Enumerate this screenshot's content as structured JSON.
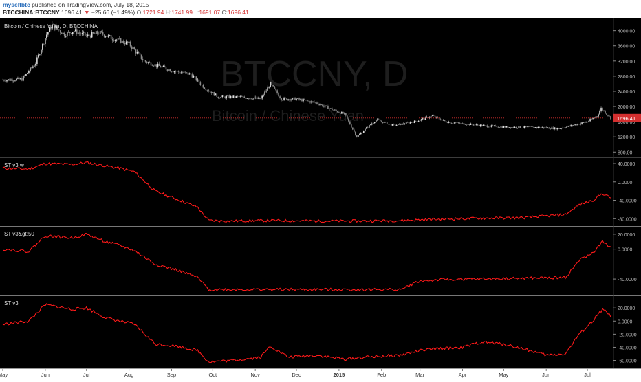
{
  "header": {
    "author": "myselfbtc",
    "published": "published on TradingView.com, July 18, 2015",
    "symbol": "BTCCHINA:BTCCNY",
    "last": "1696.41",
    "arrow": "▼",
    "change": "−25.66 (−1.49%)",
    "o_label": "O:",
    "o_val": "1721.94",
    "h_label": "H:",
    "h_val": "1741.99",
    "l_label": "L:",
    "l_val": "1691.07",
    "c_label": "C:",
    "c_val": "1696.41"
  },
  "watermark": {
    "line1": "BTCCNY, D",
    "line2": "Bitcoin / Chinese Yuan"
  },
  "colors": {
    "background": "#000000",
    "indicator": "#ff1a1a",
    "price_line": "#d32f2f",
    "candle_up": "#e0e0e0",
    "candle_down": "#8c8c8c",
    "axis_text": "#bbbbbb"
  },
  "chart_data": [
    {
      "type": "candlestick",
      "title": "Bitcoin / Chinese Yuan, D, BTCCHINA",
      "yticks": [
        "4000.00",
        "3600.00",
        "3200.00",
        "2800.00",
        "2400.00",
        "2000.00",
        "1600.00",
        "1200.00",
        "800.00"
      ],
      "ytick_values": [
        4000,
        3600,
        3200,
        2800,
        2400,
        2000,
        1600,
        1200,
        800
      ],
      "ylim": [
        660,
        4320
      ],
      "last_price_label": "1696.41",
      "last_price": 1696.41,
      "x_range": [
        "2014-05-01",
        "2015-07-18"
      ],
      "close_path": [
        [
          "2014-05-01",
          2700
        ],
        [
          "2014-05-15",
          2720
        ],
        [
          "2014-05-25",
          3150
        ],
        [
          "2014-06-02",
          3900
        ],
        [
          "2014-06-06",
          4150
        ],
        [
          "2014-06-15",
          3900
        ],
        [
          "2014-06-22",
          4000
        ],
        [
          "2014-07-01",
          3850
        ],
        [
          "2014-07-10",
          3950
        ],
        [
          "2014-07-20",
          3800
        ],
        [
          "2014-08-01",
          3650
        ],
        [
          "2014-08-12",
          3200
        ],
        [
          "2014-08-20",
          3100
        ],
        [
          "2014-09-01",
          2950
        ],
        [
          "2014-09-15",
          2850
        ],
        [
          "2014-09-25",
          2500
        ],
        [
          "2014-10-05",
          2250
        ],
        [
          "2014-10-20",
          2250
        ],
        [
          "2014-11-05",
          2200
        ],
        [
          "2014-11-12",
          2600
        ],
        [
          "2014-11-20",
          2200
        ],
        [
          "2014-12-01",
          2200
        ],
        [
          "2014-12-15",
          2100
        ],
        [
          "2014-12-25",
          1950
        ],
        [
          "2015-01-05",
          1800
        ],
        [
          "2015-01-14",
          1200
        ],
        [
          "2015-01-20",
          1400
        ],
        [
          "2015-01-28",
          1650
        ],
        [
          "2015-02-10",
          1500
        ],
        [
          "2015-02-25",
          1600
        ],
        [
          "2015-03-10",
          1750
        ],
        [
          "2015-03-20",
          1600
        ],
        [
          "2015-04-01",
          1550
        ],
        [
          "2015-04-20",
          1480
        ],
        [
          "2015-05-10",
          1450
        ],
        [
          "2015-05-25",
          1450
        ],
        [
          "2015-06-10",
          1420
        ],
        [
          "2015-06-20",
          1500
        ],
        [
          "2015-07-01",
          1600
        ],
        [
          "2015-07-08",
          1750
        ],
        [
          "2015-07-11",
          1950
        ],
        [
          "2015-07-18",
          1696
        ]
      ]
    },
    {
      "type": "line",
      "title": "ST v3 w",
      "yticks": [
        "40.0000",
        "0.0000",
        "-40.0000",
        "-80.0000"
      ],
      "ytick_values": [
        40,
        0,
        -40,
        -80
      ],
      "ylim": [
        -96,
        52
      ],
      "points": [
        [
          "2014-05-01",
          30
        ],
        [
          "2014-05-20",
          28
        ],
        [
          "2014-06-01",
          40
        ],
        [
          "2014-06-20",
          38
        ],
        [
          "2014-07-01",
          42
        ],
        [
          "2014-07-15",
          35
        ],
        [
          "2014-07-25",
          30
        ],
        [
          "2014-08-05",
          22
        ],
        [
          "2014-08-20",
          -20
        ],
        [
          "2014-09-05",
          -38
        ],
        [
          "2014-09-20",
          -55
        ],
        [
          "2014-09-28",
          -84
        ],
        [
          "2014-10-15",
          -85
        ],
        [
          "2014-11-15",
          -84
        ],
        [
          "2014-12-15",
          -85
        ],
        [
          "2015-01-15",
          -85
        ],
        [
          "2015-02-15",
          -84
        ],
        [
          "2015-03-15",
          -81
        ],
        [
          "2015-04-15",
          -79
        ],
        [
          "2015-05-15",
          -78
        ],
        [
          "2015-06-15",
          -71
        ],
        [
          "2015-06-25",
          -50
        ],
        [
          "2015-07-05",
          -40
        ],
        [
          "2015-07-12",
          -25
        ],
        [
          "2015-07-18",
          -35
        ]
      ]
    },
    {
      "type": "line",
      "title": "ST v3&gt;50",
      "yticks": [
        "20.0000",
        "0.0000",
        "-40.0000"
      ],
      "ytick_values": [
        20,
        0,
        -40
      ],
      "ylim": [
        -62,
        30
      ],
      "points": [
        [
          "2014-05-01",
          0
        ],
        [
          "2014-05-20",
          -3
        ],
        [
          "2014-06-01",
          18
        ],
        [
          "2014-06-20",
          15
        ],
        [
          "2014-07-01",
          20
        ],
        [
          "2014-07-15",
          10
        ],
        [
          "2014-07-25",
          5
        ],
        [
          "2014-08-05",
          -2
        ],
        [
          "2014-08-20",
          -20
        ],
        [
          "2014-09-05",
          -28
        ],
        [
          "2014-09-20",
          -38
        ],
        [
          "2014-09-28",
          -54
        ],
        [
          "2014-10-15",
          -54
        ],
        [
          "2014-11-15",
          -54
        ],
        [
          "2014-12-15",
          -54
        ],
        [
          "2015-01-15",
          -54
        ],
        [
          "2015-02-15",
          -54
        ],
        [
          "2015-02-28",
          -43
        ],
        [
          "2015-03-15",
          -41
        ],
        [
          "2015-04-15",
          -40
        ],
        [
          "2015-05-15",
          -39
        ],
        [
          "2015-06-15",
          -38
        ],
        [
          "2015-06-25",
          -15
        ],
        [
          "2015-07-05",
          -5
        ],
        [
          "2015-07-12",
          10
        ],
        [
          "2015-07-18",
          2
        ]
      ]
    },
    {
      "type": "line",
      "title": "ST v3",
      "yticks": [
        "20.0000",
        "0.0000",
        "-20.0000",
        "-40.0000",
        "-60.0000"
      ],
      "ytick_values": [
        20,
        0,
        -20,
        -40,
        -60
      ],
      "ylim": [
        -72,
        38
      ],
      "points": [
        [
          "2014-05-01",
          -5
        ],
        [
          "2014-05-20",
          0
        ],
        [
          "2014-06-01",
          25
        ],
        [
          "2014-06-20",
          18
        ],
        [
          "2014-07-01",
          20
        ],
        [
          "2014-07-15",
          5
        ],
        [
          "2014-07-25",
          0
        ],
        [
          "2014-08-05",
          -5
        ],
        [
          "2014-08-20",
          -35
        ],
        [
          "2014-09-05",
          -38
        ],
        [
          "2014-09-20",
          -45
        ],
        [
          "2014-09-28",
          -62
        ],
        [
          "2014-10-15",
          -60
        ],
        [
          "2014-11-05",
          -55
        ],
        [
          "2014-11-12",
          -38
        ],
        [
          "2014-11-25",
          -55
        ],
        [
          "2014-12-15",
          -52
        ],
        [
          "2015-01-05",
          -58
        ],
        [
          "2015-01-20",
          -55
        ],
        [
          "2015-02-15",
          -52
        ],
        [
          "2015-03-01",
          -45
        ],
        [
          "2015-03-15",
          -42
        ],
        [
          "2015-04-01",
          -40
        ],
        [
          "2015-04-15",
          -32
        ],
        [
          "2015-05-01",
          -35
        ],
        [
          "2015-05-15",
          -42
        ],
        [
          "2015-06-01",
          -52
        ],
        [
          "2015-06-15",
          -50
        ],
        [
          "2015-06-25",
          -20
        ],
        [
          "2015-07-05",
          0
        ],
        [
          "2015-07-12",
          18
        ],
        [
          "2015-07-18",
          8
        ]
      ]
    }
  ],
  "x_axis": {
    "labels": [
      {
        "text": "May",
        "date": "2014-05-01",
        "bold": false
      },
      {
        "text": "Jun",
        "date": "2014-06-01",
        "bold": false
      },
      {
        "text": "Jul",
        "date": "2014-07-01",
        "bold": false
      },
      {
        "text": "Aug",
        "date": "2014-08-01",
        "bold": false
      },
      {
        "text": "Sep",
        "date": "2014-09-01",
        "bold": false
      },
      {
        "text": "Oct",
        "date": "2014-10-01",
        "bold": false
      },
      {
        "text": "Nov",
        "date": "2014-11-01",
        "bold": false
      },
      {
        "text": "Dec",
        "date": "2014-12-01",
        "bold": false
      },
      {
        "text": "2015",
        "date": "2015-01-01",
        "bold": true
      },
      {
        "text": "Feb",
        "date": "2015-02-01",
        "bold": false
      },
      {
        "text": "Mar",
        "date": "2015-03-01",
        "bold": false
      },
      {
        "text": "Apr",
        "date": "2015-04-01",
        "bold": false
      },
      {
        "text": "May",
        "date": "2015-05-01",
        "bold": false
      },
      {
        "text": "Jun",
        "date": "2015-06-01",
        "bold": false
      },
      {
        "text": "Jul",
        "date": "2015-07-01",
        "bold": false
      }
    ]
  }
}
